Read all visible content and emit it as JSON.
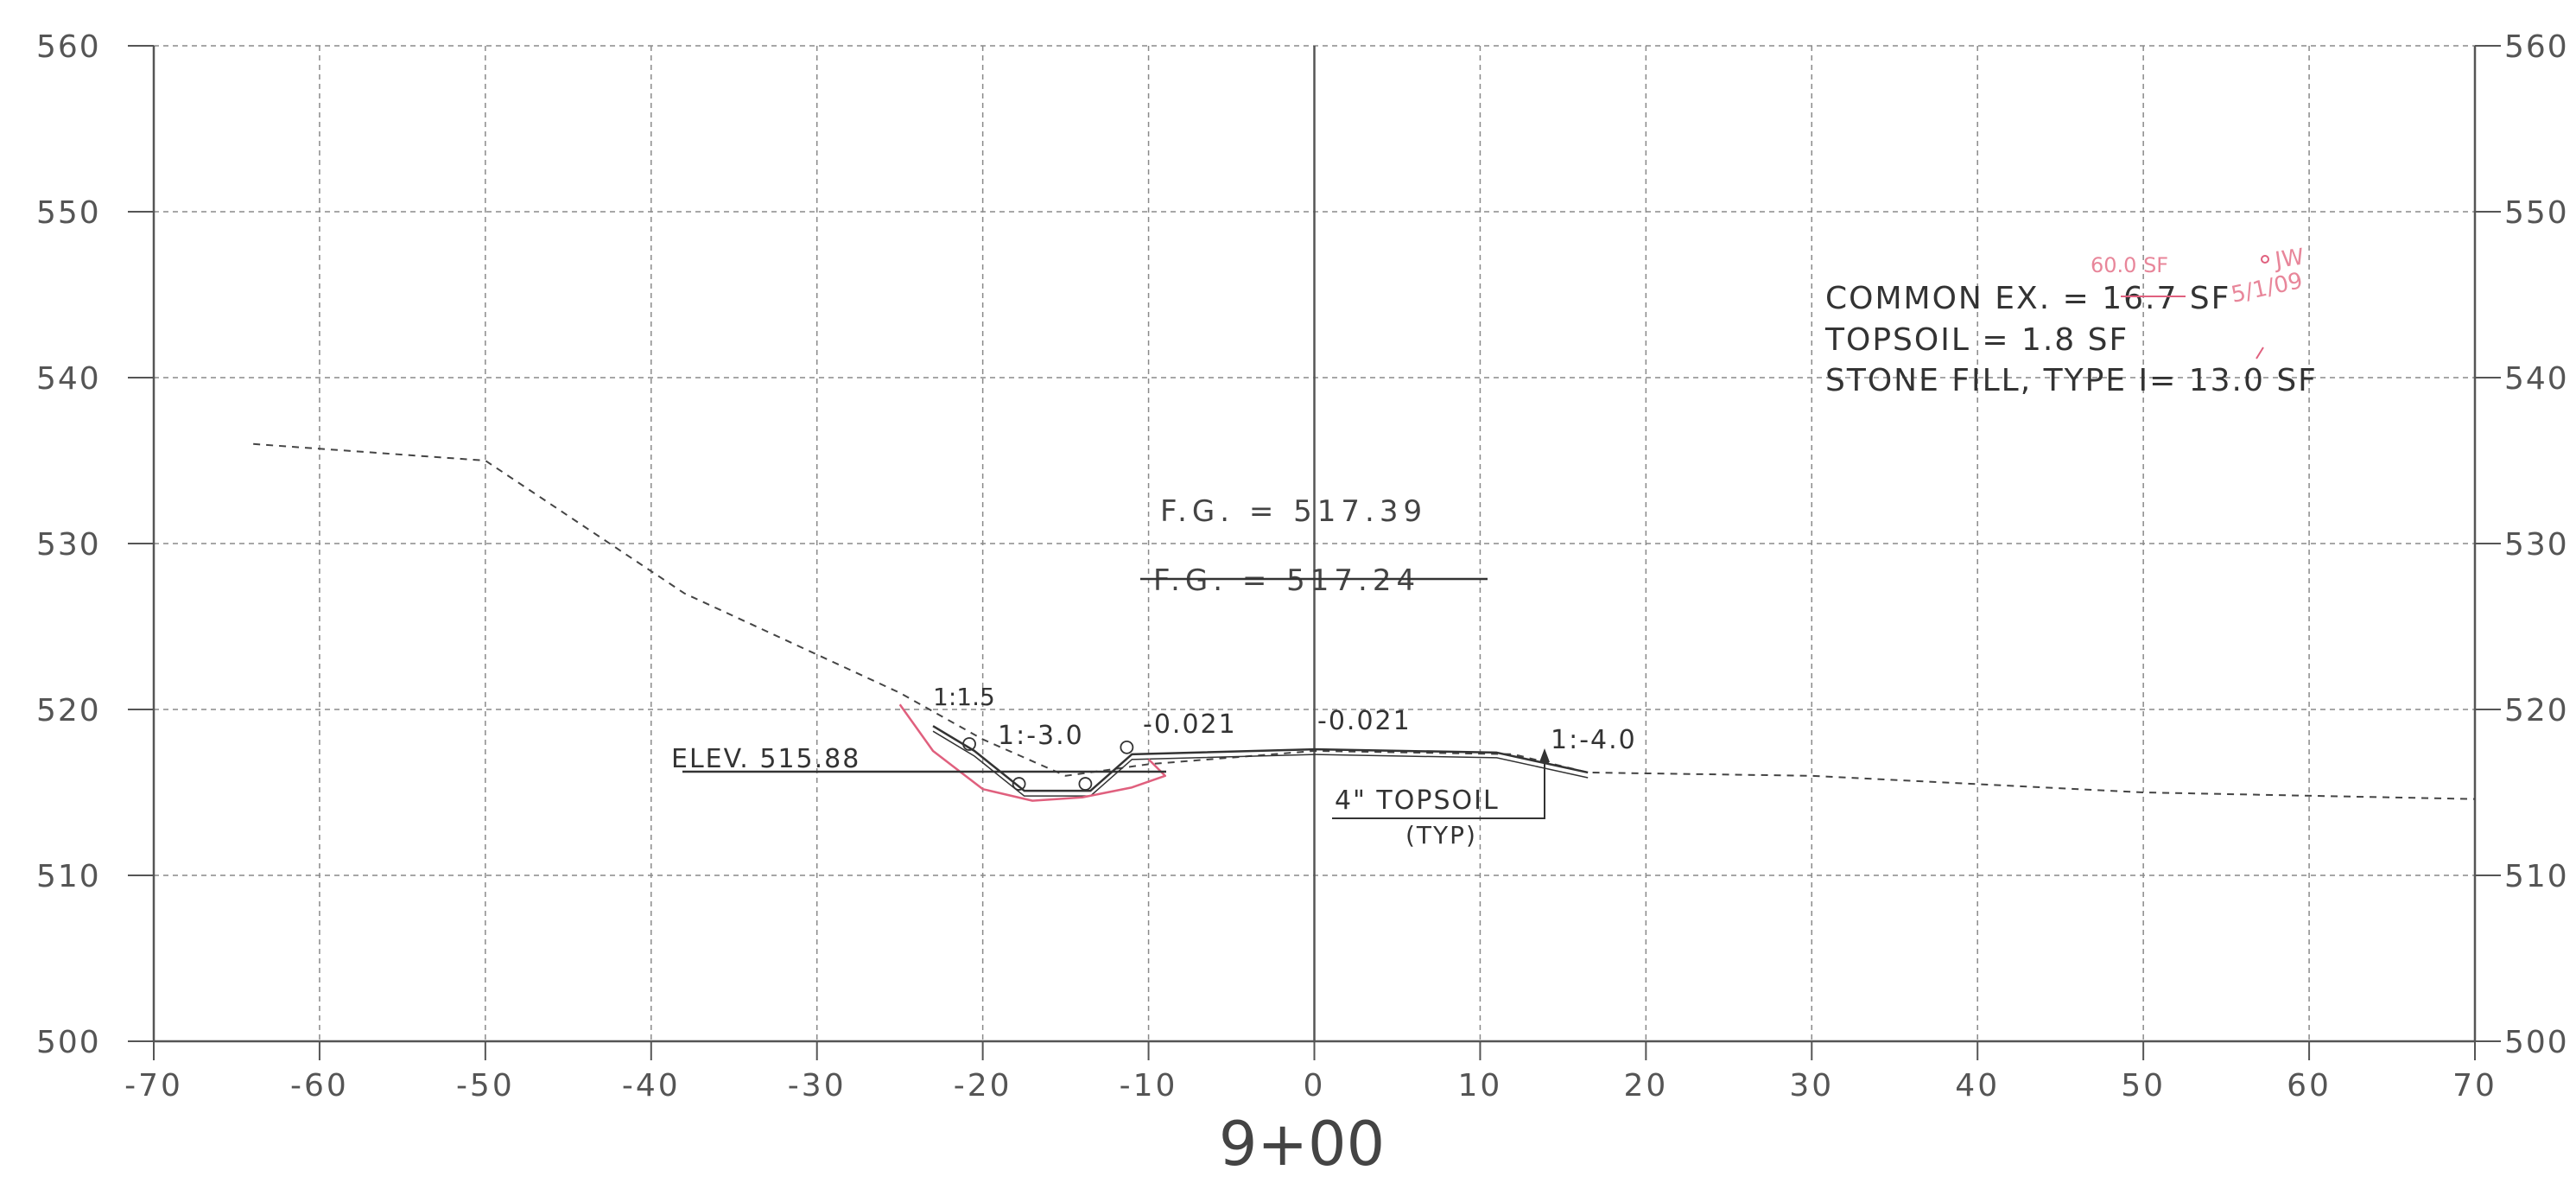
{
  "chart_data": {
    "type": "line",
    "title": "",
    "xlabel": "",
    "ylabel": "",
    "station_label": "9+00",
    "xlim": [
      -70,
      70
    ],
    "ylim": [
      500,
      560
    ],
    "grid": true,
    "x_ticks": [
      "-70",
      "-60",
      "-50",
      "-40",
      "-30",
      "-20",
      "-10",
      "0",
      "10",
      "20",
      "30",
      "40",
      "50",
      "60",
      "70"
    ],
    "y_ticks": [
      "500",
      "510",
      "520",
      "530",
      "540",
      "550",
      "560"
    ],
    "series": [
      {
        "style": "dashed",
        "points": [
          [
            -64,
            536
          ],
          [
            -50,
            535
          ],
          [
            -38,
            527
          ],
          [
            -25,
            521
          ],
          [
            -20,
            518.2
          ],
          [
            -15,
            516
          ],
          [
            -10,
            516.7
          ],
          [
            0,
            517.5
          ],
          [
            12,
            517.3
          ],
          [
            16.5,
            516.2
          ],
          [
            30,
            516
          ],
          [
            50,
            515
          ],
          [
            70,
            514.6
          ]
        ]
      },
      {
        "style": "solid",
        "points": [
          [
            -23,
            519
          ],
          [
            -20.5,
            517.5
          ],
          [
            -17.5,
            515.1
          ],
          [
            -13.5,
            515.1
          ],
          [
            -11,
            517.3
          ],
          [
            0,
            517.6
          ],
          [
            11,
            517.4
          ],
          [
            16.5,
            516.2
          ]
        ]
      },
      {
        "style": "markup",
        "color": "#e0607e",
        "points": [
          [
            -25,
            520.3
          ],
          [
            -23,
            517.5
          ],
          [
            -20,
            515.2
          ],
          [
            -17,
            514.5
          ],
          [
            -14,
            514.7
          ],
          [
            -11,
            515.3
          ],
          [
            -9,
            516
          ],
          [
            -10,
            517
          ]
        ]
      }
    ],
    "annotations": {
      "fg_top": "F.G.  =  517.39",
      "fg_struck": "F.G.  =  517.24",
      "elev": "ELEV. 515.88",
      "slope_1": "1:1.5",
      "slope_2": "1:-3.0",
      "slope_3": "-0.021",
      "slope_4": "-0.021",
      "slope_5": "1:-4.0",
      "topsoil_1": "4\" TOPSOIL",
      "topsoil_2": "(TYP)"
    },
    "quantities": [
      "COMMON EX. = 16.7 SF",
      "TOPSOIL = 1.8 SF",
      "STONE FILL, TYPE I= 13.0 SF"
    ],
    "markup_notes": [
      "60.0 SF",
      "JW",
      "5/1/09"
    ]
  }
}
